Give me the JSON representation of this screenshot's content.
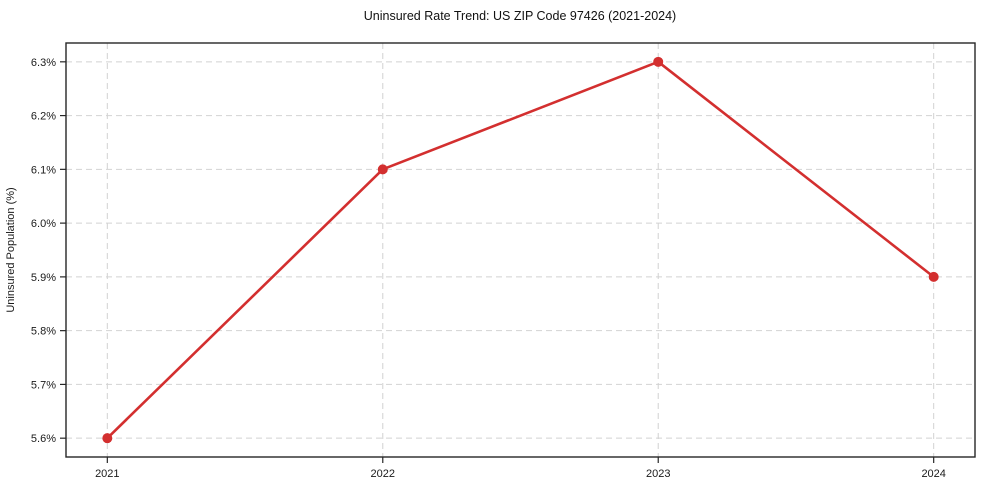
{
  "chart_data": {
    "type": "line",
    "title": "Uninsured Rate Trend: US ZIP Code 97426 (2021-2024)",
    "xlabel": "",
    "ylabel": "Uninsured Population (%)",
    "x": [
      2021,
      2022,
      2023,
      2024
    ],
    "values": [
      5.6,
      6.1,
      6.3,
      5.9
    ],
    "x_tick_labels": [
      "2021",
      "2022",
      "2023",
      "2024"
    ],
    "y_ticks": [
      5.6,
      5.7,
      5.8,
      5.9,
      6.0,
      6.1,
      6.2,
      6.3
    ],
    "y_tick_labels": [
      "5.6%",
      "5.7%",
      "5.8%",
      "5.9%",
      "6.0%",
      "6.1%",
      "6.2%",
      "6.3%"
    ],
    "xlim": [
      2020.85,
      2024.15
    ],
    "ylim": [
      5.565,
      6.335
    ],
    "grid": true,
    "legend_position": "none",
    "line_color": "#d32f2f",
    "marker": "circle",
    "grid_color": "#d2d2d2",
    "spine_color": "#262626",
    "text_color": "#1a1a1a",
    "background_color": "#ffffff"
  }
}
